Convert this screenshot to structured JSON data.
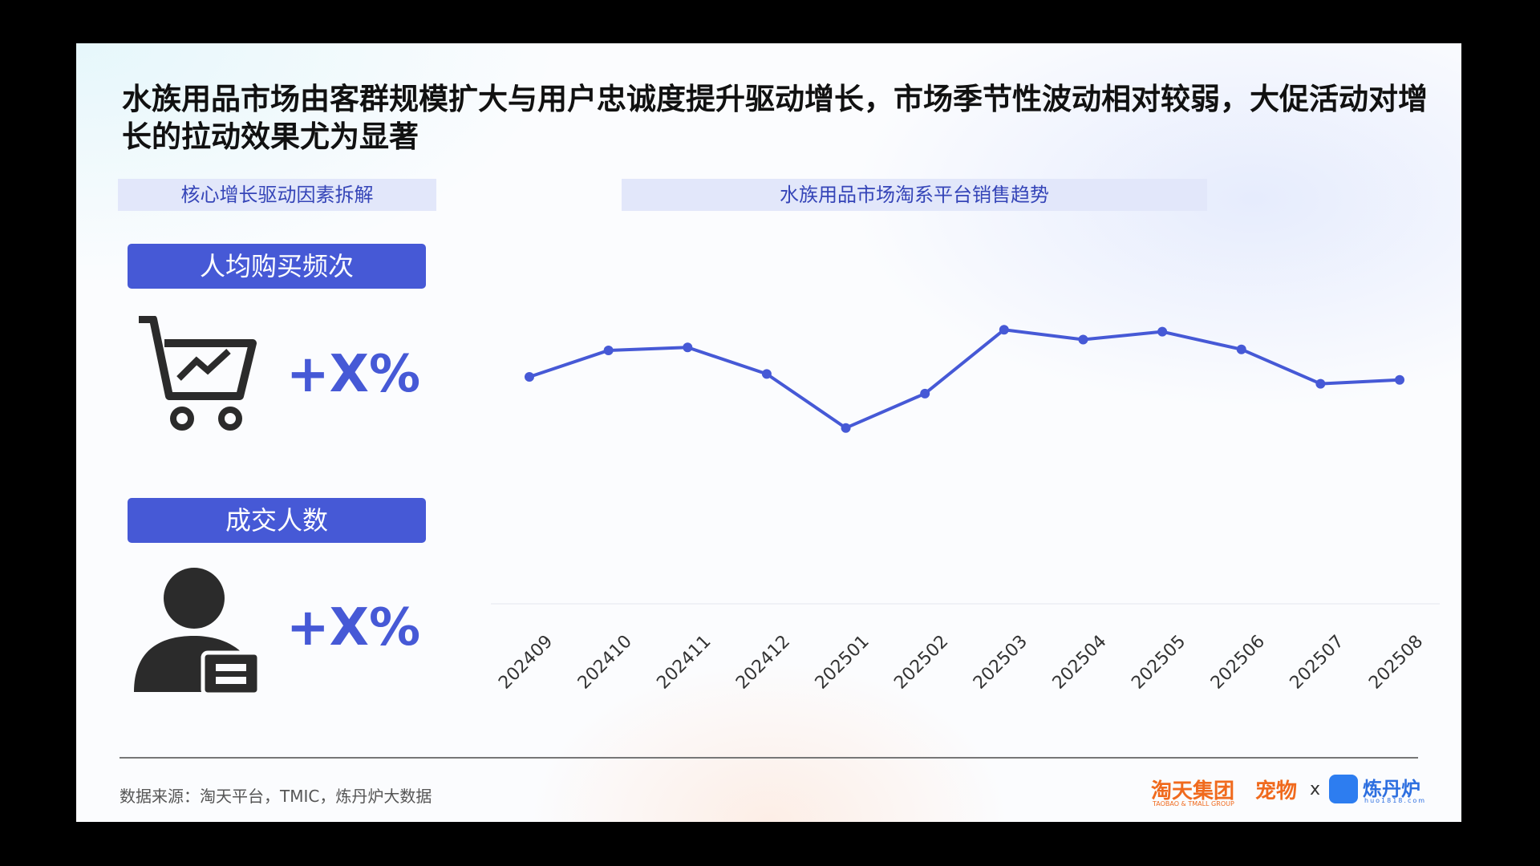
{
  "header": {
    "title": "水族用品市场由客群规模扩大与用户忠诚度提升驱动增长，市场季节性波动相对较弱，大促活动对增长的拉动效果尤为显著"
  },
  "left_panel": {
    "heading": "核心增长驱动因素拆解",
    "items": [
      {
        "label": "人均购买频次",
        "value": "+X%"
      },
      {
        "label": "成交人数",
        "value": "+X%"
      }
    ]
  },
  "chart_data": {
    "type": "line",
    "title": "水族用品市场淘系平台销售趋势",
    "categories": [
      "202409",
      "202410",
      "202411",
      "202412",
      "202501",
      "202502",
      "202503",
      "202504",
      "202505",
      "202506",
      "202507",
      "202508"
    ],
    "values": [
      231,
      258,
      261,
      234,
      179,
      214,
      279,
      269,
      277,
      259,
      224,
      228
    ],
    "color": "#4659d6",
    "ylim": [
      0,
      400
    ]
  },
  "footer": {
    "source": "数据来源：淘天平台，TMIC，炼丹炉大数据",
    "logo_group": "淘天集团",
    "logo_group_en": "TAOBAO & TMALL GROUP",
    "logo_pet": "宠物",
    "logo_x": "x",
    "logo_brand": "炼丹炉",
    "logo_brand_url": "huo1818.com"
  }
}
